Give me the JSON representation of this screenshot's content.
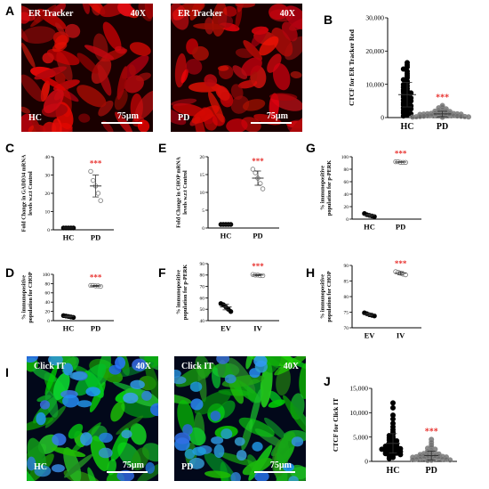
{
  "panels": {
    "A": "A",
    "B": "B",
    "C": "C",
    "D": "D",
    "E": "E",
    "F": "F",
    "G": "G",
    "H": "H",
    "I": "I",
    "J": "J"
  },
  "micrographs": [
    {
      "id": "A-left",
      "stain": "ER Tracker",
      "mag": "40X",
      "group": "HC",
      "scale": "75µm",
      "style": "red"
    },
    {
      "id": "A-right",
      "stain": "ER Tracker",
      "mag": "40X",
      "group": "PD",
      "scale": "75µm",
      "style": "red"
    },
    {
      "id": "I-left",
      "stain": "Click IT",
      "mag": "40X",
      "group": "HC",
      "scale": "75µm",
      "style": "greenblue"
    },
    {
      "id": "I-right",
      "stain": "Click IT",
      "mag": "40X",
      "group": "PD",
      "scale": "75µm",
      "style": "greenblue"
    }
  ],
  "colors": {
    "significance": "#e8322f",
    "er_red": "#d81e1e",
    "click_green": "#31b53a",
    "dapi_blue": "#2a6ee0"
  },
  "chart_data": [
    {
      "id": "B",
      "type": "scatter",
      "ylabel": "CTCF for ER Tracker Red",
      "categories": [
        "HC",
        "PD"
      ],
      "ylim": [
        0,
        30000
      ],
      "yticks": [
        "0",
        "10,000",
        "20,000",
        "30,000"
      ],
      "ytick_values": [
        0,
        10000,
        20000,
        30000
      ],
      "significance": "***",
      "series": [
        {
          "points": [
            16500,
            15800,
            15200,
            14600,
            13900,
            13200,
            12600,
            12000,
            11400,
            10900,
            10400,
            9900,
            9500,
            9100,
            8700,
            8300,
            8000,
            7700,
            7400,
            7100,
            6800,
            6500,
            6200,
            5900,
            5600,
            5300,
            5000,
            4700,
            4400,
            4100,
            3800,
            3500,
            3200,
            2900,
            2600,
            2300,
            2000,
            1700,
            1400,
            1100,
            800,
            500
          ],
          "mean": 6900,
          "sd": 3700
        },
        {
          "points": [
            3600,
            3200,
            2900,
            2600,
            2400,
            2200,
            2000,
            1900,
            1800,
            1700,
            1600,
            1500,
            1400,
            1300,
            1250,
            1200,
            1150,
            1100,
            1050,
            1000,
            950,
            900,
            850,
            800,
            750,
            700,
            650,
            600,
            550,
            500,
            450,
            400,
            350,
            300,
            250,
            200,
            150,
            100
          ],
          "mean": 1100,
          "sd": 800
        }
      ]
    },
    {
      "id": "C",
      "type": "scatter",
      "ylabel": "Fold Change in GADD34 mRNA levels w.r.t Control",
      "categories": [
        "HC",
        "PD"
      ],
      "ylim": [
        0,
        40
      ],
      "yticks": [
        "0",
        "10",
        "20",
        "30",
        "40"
      ],
      "ytick_values": [
        0,
        10,
        20,
        30,
        40
      ],
      "significance": "***",
      "series": [
        {
          "points": [
            1,
            1,
            1,
            1,
            1
          ],
          "mean": 1,
          "sd": 0
        },
        {
          "points": [
            32,
            27,
            24,
            20,
            16
          ],
          "mean": 24,
          "sd": 6
        }
      ]
    },
    {
      "id": "D",
      "type": "scatter",
      "ylabel": "Fold Change in CHOP mRNA levels w.r.t Control",
      "categories": [
        "HC",
        "PD"
      ],
      "ylim": [
        0,
        20
      ],
      "yticks": [
        "0",
        "5",
        "10",
        "15",
        "20"
      ],
      "ytick_values": [
        0,
        5,
        10,
        15,
        20
      ],
      "significance": "***",
      "series": [
        {
          "points": [
            1,
            1,
            1,
            1,
            1
          ],
          "mean": 1,
          "sd": 0
        },
        {
          "points": [
            16.5,
            15.5,
            14,
            12.5,
            11
          ],
          "mean": 14,
          "sd": 2
        }
      ]
    },
    {
      "id": "E",
      "type": "scatter",
      "ylabel": "% immunopositive population for p-PERK",
      "categories": [
        "HC",
        "PD"
      ],
      "ylim": [
        0,
        100
      ],
      "yticks": [
        "0",
        "20",
        "40",
        "60",
        "80",
        "100"
      ],
      "ytick_values": [
        0,
        20,
        40,
        60,
        80,
        100
      ],
      "significance": "***",
      "series": [
        {
          "points": [
            9,
            7,
            6,
            5,
            4
          ],
          "mean": 6,
          "sd": 2
        },
        {
          "points": [
            92,
            92,
            91,
            91,
            91
          ],
          "mean": 91.5,
          "sd": 0.5
        }
      ]
    },
    {
      "id": "F",
      "type": "scatter",
      "ylabel": "% immunopositive population for CHOP",
      "categories": [
        "HC",
        "PD"
      ],
      "ylim": [
        0,
        100
      ],
      "yticks": [
        "0",
        "20",
        "40",
        "60",
        "80",
        "100"
      ],
      "ytick_values": [
        0,
        20,
        40,
        60,
        80,
        100
      ],
      "significance": "***",
      "series": [
        {
          "points": [
            11,
            10,
            9,
            8,
            7
          ],
          "mean": 9,
          "sd": 1.5
        },
        {
          "points": [
            76,
            76,
            75,
            75,
            74
          ],
          "mean": 75,
          "sd": 1
        }
      ]
    },
    {
      "id": "G",
      "type": "scatter",
      "ylabel": "% immunopositive population for p-PERK",
      "categories": [
        "EV",
        "IV"
      ],
      "ylim": [
        40,
        90
      ],
      "yticks": [
        "40",
        "50",
        "60",
        "70",
        "80",
        "90"
      ],
      "ytick_values": [
        40,
        50,
        60,
        70,
        80,
        90
      ],
      "significance": "***",
      "series": [
        {
          "points": [
            55,
            54,
            52,
            50,
            48
          ],
          "mean": 52,
          "sd": 2.5
        },
        {
          "points": [
            80.5,
            80,
            80,
            79.5,
            79.5
          ],
          "mean": 80,
          "sd": 0.5
        }
      ]
    },
    {
      "id": "H",
      "type": "scatter",
      "ylabel": "% immunopositive population for CHOP",
      "categories": [
        "EV",
        "IV"
      ],
      "ylim": [
        70,
        90
      ],
      "yticks": [
        "70",
        "75",
        "80",
        "85",
        "90"
      ],
      "ytick_values": [
        70,
        75,
        80,
        85,
        90
      ],
      "significance": "***",
      "series": [
        {
          "points": [
            74.8,
            74.5,
            74.2,
            74,
            73.8
          ],
          "mean": 74.3,
          "sd": 0.4
        },
        {
          "points": [
            88,
            87.8,
            87.5,
            87.2,
            87
          ],
          "mean": 87.5,
          "sd": 0.5
        }
      ]
    },
    {
      "id": "J",
      "type": "scatter",
      "ylabel": "CTCF for Click IT",
      "categories": [
        "HC",
        "PD"
      ],
      "ylim": [
        0,
        15000
      ],
      "yticks": [
        "0",
        "5,000",
        "10,000",
        "15,000"
      ],
      "ytick_values": [
        0,
        5000,
        10000,
        15000
      ],
      "significance": "***",
      "series": [
        {
          "points": [
            12000,
            11000,
            9500,
            8700,
            7800,
            7100,
            6500,
            6000,
            5600,
            5300,
            5000,
            4800,
            4600,
            4400,
            4200,
            4000,
            3800,
            3600,
            3400,
            3300,
            3200,
            3100,
            3000,
            2900,
            2800,
            2700,
            2600,
            2500,
            2400,
            2300,
            2200,
            2100,
            2000,
            1900,
            1800,
            1700,
            1600,
            1400,
            1200,
            1000,
            800,
            600
          ],
          "mean": 3700,
          "sd": 2000
        },
        {
          "points": [
            4500,
            3900,
            3400,
            3000,
            2700,
            2500,
            2300,
            2100,
            1900,
            1800,
            1700,
            1600,
            1500,
            1400,
            1300,
            1250,
            1200,
            1150,
            1100,
            1050,
            1000,
            950,
            900,
            850,
            800,
            750,
            700,
            650,
            600,
            550,
            500,
            450,
            400,
            350,
            300,
            250,
            200
          ],
          "mean": 1200,
          "sd": 900
        }
      ]
    }
  ]
}
